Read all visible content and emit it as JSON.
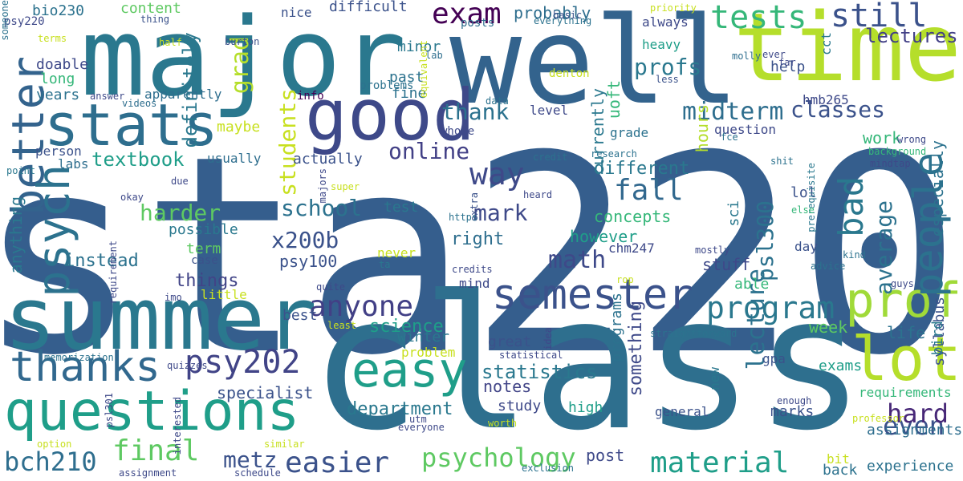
{
  "words": [
    {
      "text": "sta220",
      "color": "#355e8d",
      "rot": 0
    },
    {
      "text": "class",
      "color": "#2e6f8e",
      "rot": 0
    },
    {
      "text": "major",
      "color": "#2a788e",
      "rot": 0
    },
    {
      "text": "well",
      "color": "#33638d",
      "rot": 0
    },
    {
      "text": "time",
      "color": "#b5de2b",
      "rot": 0
    },
    {
      "text": "summer",
      "color": "#2a788e",
      "rot": 0
    },
    {
      "text": "good",
      "color": "#3e4989",
      "rot": 0
    },
    {
      "text": "stats",
      "color": "#2e6e8e",
      "rot": 0
    },
    {
      "text": "questions",
      "color": "#1f9e89",
      "rot": 0
    },
    {
      "text": "lot",
      "color": "#b5de2b",
      "rot": 0
    },
    {
      "text": "prof",
      "color": "#a0da39",
      "rot": 0
    },
    {
      "text": "easy",
      "color": "#1f9e89",
      "rot": 0
    },
    {
      "text": "better",
      "color": "#33638d",
      "rot": 270
    },
    {
      "text": "psych",
      "color": "#2c728e",
      "rot": 270
    },
    {
      "text": "thanks",
      "color": "#31688e",
      "rot": 0
    },
    {
      "text": "semester",
      "color": "#3b528b",
      "rot": 0
    },
    {
      "text": "people",
      "color": "#2c728e",
      "rot": 270
    },
    {
      "text": "tests",
      "color": "#35b779",
      "rot": 0
    },
    {
      "text": "still",
      "color": "#3b528b",
      "rot": 0
    },
    {
      "text": "psy202",
      "color": "#414487",
      "rot": 0
    },
    {
      "text": "program",
      "color": "#2a788e",
      "rot": 0
    },
    {
      "text": "anyone",
      "color": "#424086",
      "rot": 0
    },
    {
      "text": "exam",
      "color": "#440154",
      "rot": 0
    },
    {
      "text": "fall",
      "color": "#31688e",
      "rot": 0
    },
    {
      "text": "way",
      "color": "#3e4989",
      "rot": 0
    },
    {
      "text": "material",
      "color": "#1f9e89",
      "rot": 0
    },
    {
      "text": "easier",
      "color": "#3b528b",
      "rot": 0
    },
    {
      "text": "psychology",
      "color": "#5ec962",
      "rot": 0
    },
    {
      "text": "final",
      "color": "#5ec962",
      "rot": 0
    },
    {
      "text": "bch210",
      "color": "#2e6e8e",
      "rot": 0
    },
    {
      "text": "metz",
      "color": "#3b528b",
      "rot": 0
    },
    {
      "text": "bad",
      "color": "#2a788e",
      "rot": 270
    },
    {
      "text": "even",
      "color": "#3b528b",
      "rot": 0
    },
    {
      "text": "hard",
      "color": "#482878",
      "rot": 0
    },
    {
      "text": "math",
      "color": "#3e4989",
      "rot": 0
    },
    {
      "text": "mark",
      "color": "#3e4989",
      "rot": 0
    },
    {
      "text": "school",
      "color": "#2c728e",
      "rot": 0
    },
    {
      "text": "x200b",
      "color": "#3b528b",
      "rot": 0
    },
    {
      "text": "harder",
      "color": "#5ec962",
      "rot": 0
    },
    {
      "text": "midterm",
      "color": "#2e6e8e",
      "rot": 0
    },
    {
      "text": "classes",
      "color": "#3b528b",
      "rot": 0
    },
    {
      "text": "hmb265",
      "color": "#3e4989",
      "rot": 0
    },
    {
      "text": "thank",
      "color": "#2c728e",
      "rot": 0
    },
    {
      "text": "online",
      "color": "#424086",
      "rot": 0
    },
    {
      "text": "lecture",
      "color": "#2c728e",
      "rot": 270
    },
    {
      "text": "average",
      "color": "#2c728e",
      "rot": 270
    },
    {
      "text": "psl300",
      "color": "#2c728e",
      "rot": 270
    },
    {
      "text": "students",
      "color": "#c8e020",
      "rot": 270
    },
    {
      "text": "statistics",
      "color": "#2a788e",
      "rot": 0
    },
    {
      "text": "lectures",
      "color": "#424086",
      "rot": 0
    },
    {
      "text": "profs",
      "color": "#2a788e",
      "rot": 0
    },
    {
      "text": "textbook",
      "color": "#1f9e89",
      "rot": 0
    },
    {
      "text": "instead",
      "color": "#2c728e",
      "rot": 0
    },
    {
      "text": "things",
      "color": "#414487",
      "rot": 0
    },
    {
      "text": "different",
      "color": "#2a788e",
      "rot": 0
    },
    {
      "text": "right",
      "color": "#2e6e8e",
      "rot": 0
    },
    {
      "text": "specialist",
      "color": "#3b528b",
      "rot": 0
    },
    {
      "text": "department",
      "color": "#2a788e",
      "rot": 0
    },
    {
      "text": "science",
      "color": "#1f9e89",
      "rot": 0
    },
    {
      "text": "content",
      "color": "#5ec962",
      "rot": 0
    },
    {
      "text": "difficult",
      "color": "#3b528b",
      "rot": 0
    },
    {
      "text": "probably",
      "color": "#2e6e8e",
      "rot": 0
    },
    {
      "text": "psy100",
      "color": "#3b528b",
      "rot": 0
    },
    {
      "text": "however",
      "color": "#1f9e89",
      "rot": 0
    },
    {
      "text": "concepts",
      "color": "#35b779",
      "rot": 0
    },
    {
      "text": "stuff",
      "color": "#3e4989",
      "rot": 0
    },
    {
      "text": "work",
      "color": "#35b779",
      "rot": 0
    },
    {
      "text": "life",
      "color": "#2c728e",
      "rot": 0
    },
    {
      "text": "week",
      "color": "#5ec962",
      "rot": 0
    },
    {
      "text": "exams",
      "color": "#1f9e89",
      "rot": 0
    },
    {
      "text": "notes",
      "color": "#414487",
      "rot": 0
    },
    {
      "text": "post",
      "color": "#3e4989",
      "rot": 0
    },
    {
      "text": "something",
      "color": "#3e4989",
      "rot": 270
    },
    {
      "text": "programs",
      "color": "#2c728e",
      "rot": 270
    },
    {
      "text": "anything",
      "color": "#2a788e",
      "rot": 270
    },
    {
      "text": "long",
      "color": "#35b779",
      "rot": 0
    },
    {
      "text": "years",
      "color": "#2c728e",
      "rot": 0
    },
    {
      "text": "doable",
      "color": "#3e4989",
      "rot": 0
    },
    {
      "text": "bio230",
      "color": "#2c728e",
      "rot": 0
    },
    {
      "text": "past",
      "color": "#2c728e",
      "rot": 0
    },
    {
      "text": "fine",
      "color": "#2c728e",
      "rot": 0
    },
    {
      "text": "minor",
      "color": "#2a788e",
      "rot": 0
    },
    {
      "text": "grade",
      "color": "#2c728e",
      "rot": 0
    },
    {
      "text": "question",
      "color": "#3e4989",
      "rot": 0
    },
    {
      "text": "help",
      "color": "#3b528b",
      "rot": 0
    },
    {
      "text": "heavy",
      "color": "#1f9e89",
      "rot": 0
    },
    {
      "text": "always",
      "color": "#3e4989",
      "rot": 0
    },
    {
      "text": "lol",
      "color": "#3b528b",
      "rot": 0
    },
    {
      "text": "day",
      "color": "#3b528b",
      "rot": 0
    },
    {
      "text": "able",
      "color": "#35b779",
      "rot": 0
    },
    {
      "text": "winter",
      "color": "#2a788e",
      "rot": 0
    },
    {
      "text": "great",
      "color": "#3b528b",
      "rot": 0
    },
    {
      "text": "study",
      "color": "#3e4989",
      "rot": 0
    },
    {
      "text": "high",
      "color": "#1f9e89",
      "rot": 0
    },
    {
      "text": "general",
      "color": "#3b528b",
      "rot": 0
    },
    {
      "text": "marks",
      "color": "#3b528b",
      "rot": 0
    },
    {
      "text": "assignments",
      "color": "#2e6e8e",
      "rot": 0
    },
    {
      "text": "requirements",
      "color": "#35b779",
      "rot": 0
    },
    {
      "text": "experience",
      "color": "#2c728e",
      "rot": 0
    },
    {
      "text": "back",
      "color": "#2c728e",
      "rot": 0
    },
    {
      "text": "term",
      "color": "#5ec962",
      "rot": 0
    },
    {
      "text": "possible",
      "color": "#2a788e",
      "rot": 0
    },
    {
      "text": "maybe",
      "color": "#c8e020",
      "rot": 0
    },
    {
      "text": "grad",
      "color": "#b5de2b",
      "rot": 270
    },
    {
      "text": "definitely",
      "color": "#2a788e",
      "rot": 270
    },
    {
      "text": "apparently",
      "color": "#2e6e8e",
      "rot": 0
    },
    {
      "text": "actually",
      "color": "#3b528b",
      "rot": 0
    },
    {
      "text": "usually",
      "color": "#2e6e8e",
      "rot": 0
    },
    {
      "text": "labs",
      "color": "#2e6e8e",
      "rot": 0
    },
    {
      "text": "person",
      "color": "#3b528b",
      "rot": 0
    },
    {
      "text": "test",
      "color": "#2a788e",
      "rot": 0
    },
    {
      "text": "level",
      "color": "#3e4989",
      "rot": 0
    },
    {
      "text": "mind",
      "color": "#3e4989",
      "rot": 0
    },
    {
      "text": "best",
      "color": "#3b528b",
      "rot": 0
    },
    {
      "text": "problem",
      "color": "#c8e020",
      "rot": 0
    },
    {
      "text": "little",
      "color": "#c8e020",
      "rot": 0
    },
    {
      "text": "case",
      "color": "#3b528b",
      "rot": 0
    },
    {
      "text": "never",
      "color": "#c8e020",
      "rot": 0
    },
    {
      "text": "nice",
      "color": "#3b528b",
      "rot": 0
    },
    {
      "text": "psy220",
      "color": "#3e4989",
      "rot": 0
    },
    {
      "text": "uoft",
      "color": "#35b779",
      "rot": 270
    },
    {
      "text": "currently",
      "color": "#2a788e",
      "rot": 270
    },
    {
      "text": "hours",
      "color": "#b5de2b",
      "rot": 270
    },
    {
      "text": "sci",
      "color": "#2a788e",
      "rot": 270
    },
    {
      "text": "especially",
      "color": "#2c728e",
      "rot": 270
    },
    {
      "text": "syllabus",
      "color": "#3b528b",
      "rot": 270
    },
    {
      "text": "bird",
      "color": "#2a788e",
      "rot": 270
    },
    {
      "text": "cct",
      "color": "#2a788e",
      "rot": 270
    },
    {
      "text": "chm247",
      "color": "#3e4989",
      "rot": 0
    },
    {
      "text": "gpa",
      "color": "#3b528b",
      "rot": 0
    },
    {
      "text": "new",
      "color": "#2a788e",
      "rot": 270
    },
    {
      "text": "bit",
      "color": "#c8e020",
      "rot": 0
    },
    {
      "text": "thing",
      "color": "#3b528b",
      "rot": 0
    },
    {
      "text": "half",
      "color": "#c8e020",
      "rot": 0
    },
    {
      "text": "burton",
      "color": "#3b528b",
      "rot": 0
    },
    {
      "text": "terms",
      "color": "#c8e020",
      "rot": 0
    },
    {
      "text": "answer",
      "color": "#3e4989",
      "rot": 0
    },
    {
      "text": "videos",
      "color": "#2e6e8e",
      "rot": 0
    },
    {
      "text": "info",
      "color": "#440154",
      "rot": 0
    },
    {
      "text": "problems",
      "color": "#2c728e",
      "rot": 0
    },
    {
      "text": "equivalent",
      "color": "#c8e020",
      "rot": 270
    },
    {
      "text": "lab",
      "color": "#2e6e8e",
      "rot": 0
    },
    {
      "text": "posts",
      "color": "#2e6e8e",
      "rot": 0
    },
    {
      "text": "everything",
      "color": "#2c728e",
      "rot": 0
    },
    {
      "text": "basic",
      "color": "#3b528b",
      "rot": 0
    },
    {
      "text": "denton",
      "color": "#c8e020",
      "rot": 0
    },
    {
      "text": "priority",
      "color": "#c8e020",
      "rot": 0
    },
    {
      "text": "molly",
      "color": "#2e6e8e",
      "rot": 0
    },
    {
      "text": "ever",
      "color": "#3e4989",
      "rot": 0
    },
    {
      "text": "far",
      "color": "#3e4989",
      "rot": 0
    },
    {
      "text": "less",
      "color": "#3b528b",
      "rot": 0
    },
    {
      "text": "data",
      "color": "#2c728e",
      "rot": 0
    },
    {
      "text": "whole",
      "color": "#3e4989",
      "rot": 0
    },
    {
      "text": "research",
      "color": "#2c728e",
      "rot": 0
    },
    {
      "text": "credit",
      "color": "#2c728e",
      "rot": 0
    },
    {
      "text": "fce",
      "color": "#2c728e",
      "rot": 0
    },
    {
      "text": "background",
      "color": "#35b779",
      "rot": 0
    },
    {
      "text": "mindtap",
      "color": "#3e4989",
      "rot": 0
    },
    {
      "text": "wrong",
      "color": "#3e4989",
      "rot": 0
    },
    {
      "text": "shit",
      "color": "#2c728e",
      "rot": 0
    },
    {
      "text": "prerequisite",
      "color": "#2a788e",
      "rot": 270
    },
    {
      "text": "else",
      "color": "#35b779",
      "rot": 0
    },
    {
      "text": "point",
      "color": "#2a788e",
      "rot": 0
    },
    {
      "text": "due",
      "color": "#3e4989",
      "rot": 0
    },
    {
      "text": "majors",
      "color": "#3e4989",
      "rot": 270
    },
    {
      "text": "super",
      "color": "#c8e020",
      "rot": 0
    },
    {
      "text": "okay",
      "color": "#3e4989",
      "rot": 0
    },
    {
      "text": "extra",
      "color": "#3b528b",
      "rot": 270
    },
    {
      "text": "heard",
      "color": "#3e4989",
      "rot": 0
    },
    {
      "text": "https",
      "color": "#2c728e",
      "rot": 0
    },
    {
      "text": "requirement",
      "color": "#3e4989",
      "rot": 270
    },
    {
      "text": "ta",
      "color": "#2a788e",
      "rot": 0
    },
    {
      "text": "credits",
      "color": "#3e4989",
      "rot": 0
    },
    {
      "text": "mostly",
      "color": "#3e4989",
      "rot": 0
    },
    {
      "text": "advice",
      "color": "#2c728e",
      "rot": 0
    },
    {
      "text": "kind",
      "color": "#2c728e",
      "rot": 0
    },
    {
      "text": "rop",
      "color": "#c8e020",
      "rot": 0
    },
    {
      "text": "guys",
      "color": "#3e4989",
      "rot": 0
    },
    {
      "text": "quite",
      "color": "#3e4989",
      "rot": 0
    },
    {
      "text": "imo",
      "color": "#3e4989",
      "rot": 0
    },
    {
      "text": "least",
      "color": "#c8e020",
      "rot": 0
    },
    {
      "text": "idea",
      "color": "#3e4989",
      "rot": 270
    },
    {
      "text": "straightforward",
      "color": "#2c728e",
      "rot": 0
    },
    {
      "text": "memorization",
      "color": "#2c728e",
      "rot": 0
    },
    {
      "text": "statistical",
      "color": "#3e4989",
      "rot": 0
    },
    {
      "text": "quizzes",
      "color": "#3e4989",
      "rot": 0
    },
    {
      "text": "interested",
      "color": "#3e4989",
      "rot": 270
    },
    {
      "text": "psl301",
      "color": "#3e4989",
      "rot": 270
    },
    {
      "text": "enough",
      "color": "#3e4989",
      "rot": 0
    },
    {
      "text": "utm",
      "color": "#3e4989",
      "rot": 0
    },
    {
      "text": "everyone",
      "color": "#3e4989",
      "rot": 0
    },
    {
      "text": "worth",
      "color": "#c8e020",
      "rot": 0
    },
    {
      "text": "option",
      "color": "#c8e020",
      "rot": 0
    },
    {
      "text": "similar",
      "color": "#c8e020",
      "rot": 0
    },
    {
      "text": "assignment",
      "color": "#3e4989",
      "rot": 0
    },
    {
      "text": "schedule",
      "color": "#3e4989",
      "rot": 0
    },
    {
      "text": "exclusion",
      "color": "#2c728e",
      "rot": 0
    },
    {
      "text": "professor",
      "color": "#c8e020",
      "rot": 0
    },
    {
      "text": "someone",
      "color": "#2c728e",
      "rot": 270
    }
  ]
}
